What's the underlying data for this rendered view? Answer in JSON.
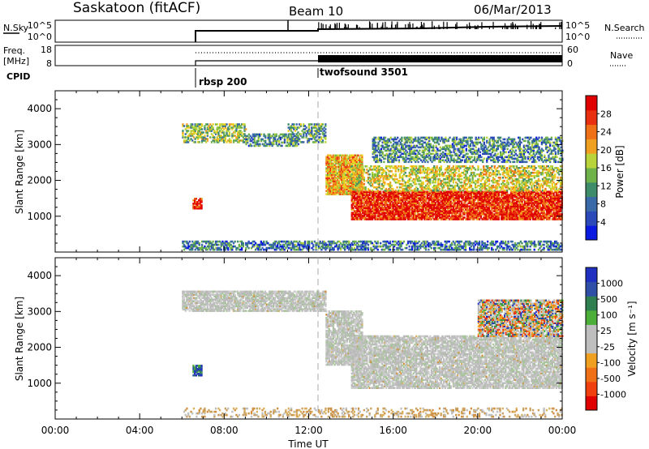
{
  "header": {
    "station": "Saskatoon (fitACF)",
    "beam": "Beam 10",
    "date": "06/Mar/2013"
  },
  "summary": {
    "nsky_label": "N.Sky",
    "nsky_ticks": [
      "10^5",
      "10^0"
    ],
    "nsearch_label": "N.Search",
    "freq_label_1": "Freq.",
    "freq_label_2": "[MHz]",
    "freq_ticks": [
      "18",
      "8"
    ],
    "nave_ticks": [
      "60",
      "0"
    ],
    "nave_label": "Nave",
    "cpid_label": "CPID",
    "cpid_modes": [
      {
        "name": "rbsp 200",
        "start": "06:00"
      },
      {
        "name": "twofsound 3501",
        "start": "12:00"
      }
    ]
  },
  "time_axis": {
    "label": "Time UT",
    "ticks": [
      "00:00",
      "04:00",
      "08:00",
      "12:00",
      "16:00",
      "20:00",
      "00:00"
    ]
  },
  "chart_data": [
    {
      "type": "heatmap",
      "panel": "power",
      "ylabel": "Slant Range [km]",
      "yticks": [
        1000,
        2000,
        3000,
        4000
      ],
      "ylim": [
        0,
        4500
      ],
      "xlim_hours": [
        0,
        24
      ],
      "colorbar": {
        "label": "Power [dB]",
        "ticks": [
          "28",
          "24",
          "20",
          "16",
          "12",
          "8",
          "4"
        ],
        "range": [
          0,
          30
        ]
      },
      "regions": [
        {
          "t0": 6.0,
          "t1": 9.0,
          "r0": 3050,
          "r1": 3550,
          "level": 0.45
        },
        {
          "t0": 9.0,
          "t1": 11.5,
          "r0": 2950,
          "r1": 3300,
          "level": 0.3
        },
        {
          "t0": 11.0,
          "t1": 12.8,
          "r0": 3050,
          "r1": 3550,
          "level": 0.35
        },
        {
          "t0": 6.5,
          "t1": 6.9,
          "r0": 1200,
          "r1": 1500,
          "level": 0.9
        },
        {
          "t0": 12.8,
          "t1": 14.5,
          "r0": 1600,
          "r1": 2700,
          "level": 0.65
        },
        {
          "t0": 14.0,
          "t1": 24.0,
          "r0": 900,
          "r1": 1700,
          "level": 0.9
        },
        {
          "t0": 14.0,
          "t1": 24.0,
          "r0": 1700,
          "r1": 2400,
          "level": 0.55
        },
        {
          "t0": 15.0,
          "t1": 24.0,
          "r0": 2500,
          "r1": 3200,
          "level": 0.3
        },
        {
          "t0": 6.0,
          "t1": 24.0,
          "r0": 50,
          "r1": 300,
          "level": 0.25
        }
      ]
    },
    {
      "type": "heatmap",
      "panel": "velocity",
      "ylabel": "Slant Range [km]",
      "yticks": [
        1000,
        2000,
        3000,
        4000
      ],
      "ylim": [
        0,
        4500
      ],
      "xlim_hours": [
        0,
        24
      ],
      "colorbar": {
        "label": "Velocity [m s⁻¹]",
        "ticks": [
          "1000",
          "500",
          "100",
          "25",
          "-25",
          "-100",
          "-500",
          "-1000"
        ],
        "range": [
          -1000,
          1000
        ]
      },
      "regions": [
        {
          "t0": 6.0,
          "t1": 12.8,
          "r0": 3000,
          "r1": 3550,
          "vclass": "ground"
        },
        {
          "t0": 6.5,
          "t1": 6.9,
          "r0": 1200,
          "r1": 1500,
          "vclass": "pos"
        },
        {
          "t0": 12.8,
          "t1": 14.5,
          "r0": 1500,
          "r1": 3000,
          "vclass": "ground"
        },
        {
          "t0": 14.0,
          "t1": 24.0,
          "r0": 850,
          "r1": 2300,
          "vclass": "ground"
        },
        {
          "t0": 20.0,
          "t1": 24.0,
          "r0": 2300,
          "r1": 3300,
          "vclass": "mixed"
        },
        {
          "t0": 6.0,
          "t1": 24.0,
          "r0": 50,
          "r1": 300,
          "vclass": "weak"
        }
      ]
    }
  ],
  "colors": {
    "grid_dash": "#aaaaaa",
    "ground_scatter": "#bebebe"
  }
}
